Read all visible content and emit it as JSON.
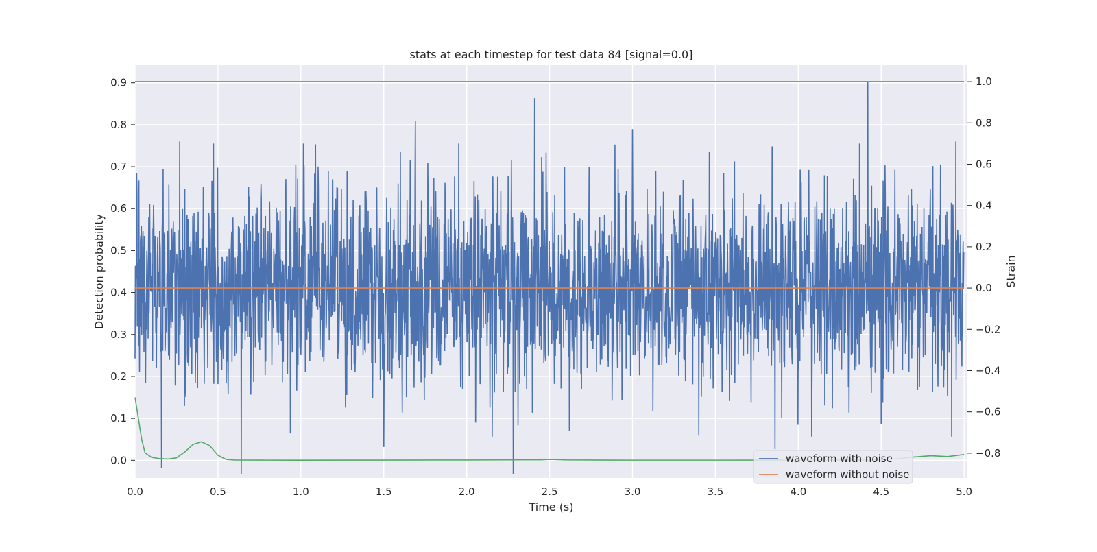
{
  "chart_data": {
    "type": "line",
    "title": "stats at each timestep for test data 84 [signal=0.0]",
    "xlabel": "Time (s)",
    "ylabel_left": "Detection probability",
    "ylabel_right": "Strain",
    "xlim": [
      0.0,
      5.02
    ],
    "ylim_left": [
      -0.042,
      0.942
    ],
    "ylim_right": [
      -0.92,
      1.08
    ],
    "x_ticks": [
      0.0,
      0.5,
      1.0,
      1.5,
      2.0,
      2.5,
      3.0,
      3.5,
      4.0,
      4.5,
      5.0
    ],
    "x_tick_labels": [
      "0.0",
      "0.5",
      "1.0",
      "1.5",
      "2.0",
      "2.5",
      "3.0",
      "3.5",
      "4.0",
      "4.5",
      "5.0"
    ],
    "y_left_ticks": [
      0.0,
      0.1,
      0.2,
      0.3,
      0.4,
      0.5,
      0.6,
      0.7,
      0.8,
      0.9
    ],
    "y_left_tick_labels": [
      "0.0",
      "0.1",
      "0.2",
      "0.3",
      "0.4",
      "0.5",
      "0.6",
      "0.7",
      "0.8",
      "0.9"
    ],
    "y_right_ticks": [
      -0.8,
      -0.6,
      -0.4,
      -0.2,
      0.0,
      0.2,
      0.4,
      0.6,
      0.8,
      1.0
    ],
    "y_right_tick_labels": [
      "−0.8",
      "−0.6",
      "−0.4",
      "−0.2",
      "0.0",
      "0.2",
      "0.4",
      "0.6",
      "0.8",
      "1.0"
    ],
    "grid": true,
    "legend_position": "lower-right",
    "background_color": "#eaeaf2",
    "series": [
      {
        "name": "waveform with noise",
        "axis": "right",
        "color": "#4c72b0",
        "style": "dense noise oscillating around 0 with peaks up to about 1.0 and troughs down to about -0.9",
        "x_range": [
          0.0,
          5.0
        ],
        "notable_peaks": [
          [
            0.27,
            0.71
          ],
          [
            1.69,
            0.81
          ],
          [
            2.41,
            0.92
          ],
          [
            3.0,
            0.77
          ],
          [
            4.42,
            1.0
          ],
          [
            4.5,
            0.85
          ],
          [
            4.95,
            0.71
          ]
        ],
        "notable_troughs": [
          [
            0.16,
            -0.87
          ],
          [
            0.64,
            -0.9
          ],
          [
            1.5,
            -0.77
          ],
          [
            2.28,
            -0.9
          ],
          [
            3.86,
            -0.78
          ],
          [
            4.5,
            -0.66
          ]
        ]
      },
      {
        "name": "waveform without noise",
        "axis": "right",
        "color": "#dd8452",
        "x": [
          0.0,
          5.0
        ],
        "values": [
          0.0,
          0.0
        ]
      },
      {
        "name": "",
        "axis": "left",
        "color": "#55a868",
        "x": [
          0.0,
          0.02,
          0.04,
          0.06,
          0.1,
          0.15,
          0.2,
          0.25,
          0.3,
          0.35,
          0.4,
          0.45,
          0.5,
          0.55,
          0.6,
          0.8,
          1.0,
          1.5,
          2.0,
          2.45,
          2.5,
          2.6,
          3.0,
          3.5,
          4.0,
          4.5,
          4.6,
          4.7,
          4.8,
          4.9,
          5.0
        ],
        "values": [
          0.15,
          0.1,
          0.05,
          0.018,
          0.007,
          0.004,
          0.003,
          0.006,
          0.02,
          0.038,
          0.044,
          0.035,
          0.012,
          0.002,
          0.0005,
          0.0003,
          0.0002,
          0.0004,
          0.0006,
          0.001,
          0.002,
          0.0008,
          0.0003,
          0.0003,
          0.0004,
          0.0006,
          0.004,
          0.008,
          0.011,
          0.009,
          0.014
        ]
      },
      {
        "name": "",
        "axis": "right",
        "color": "#c44e52",
        "x": [
          0.0,
          5.0
        ],
        "values": [
          1.0,
          1.0
        ]
      }
    ]
  }
}
